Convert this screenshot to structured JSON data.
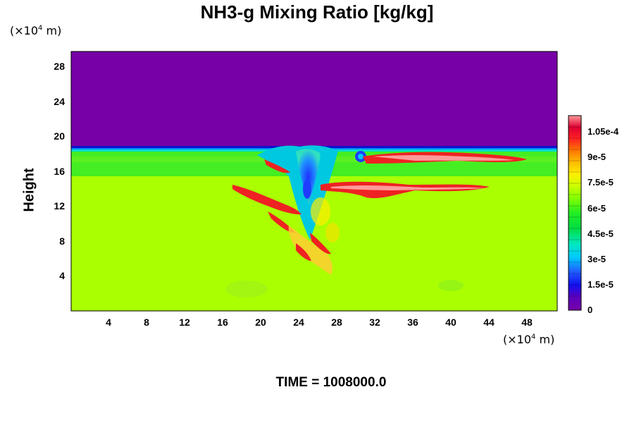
{
  "chart_data": {
    "type": "heatmap",
    "title": "NH3-g Mixing Ratio [kg/kg]",
    "ylabel": "Height",
    "x_unit": "(×10⁴ m)",
    "y_unit": "(×10⁴ m)",
    "footer": "TIME = 1008000.0",
    "x_ticks": [
      "4",
      "8",
      "12",
      "16",
      "20",
      "24",
      "28",
      "32",
      "36",
      "40",
      "44",
      "48"
    ],
    "y_ticks": [
      "4",
      "8",
      "12",
      "16",
      "20",
      "24",
      "28"
    ],
    "xlim": [
      0,
      51
    ],
    "ylim": [
      0,
      30
    ],
    "colorbar": {
      "ticks": [
        "0",
        "1.5e-5",
        "3e-5",
        "4.5e-5",
        "6e-5",
        "7.5e-5",
        "9e-5",
        "1.05e-4"
      ],
      "range": [
        0,
        0.000114
      ]
    },
    "fields": {
      "above_tropopause": "0",
      "upper_layer_15_to_19": "~6e-5",
      "lower_layer_0_to_15": "~7.5e-5",
      "plume_core_near_x24": "~2e-5",
      "band_maxima": "~1.1e-4"
    },
    "colors": {
      "purple": "#7700a6",
      "lime": "#aaff00",
      "green": "#44ee22",
      "red": "#ee2222",
      "blue": "#1f3cff"
    }
  }
}
